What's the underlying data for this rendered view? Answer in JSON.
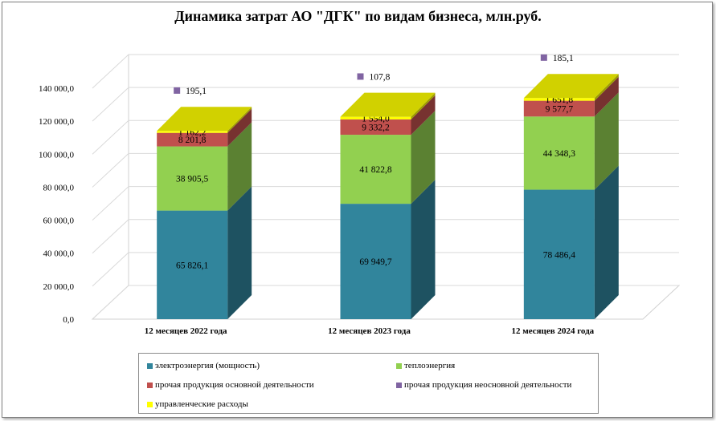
{
  "chart_data": {
    "type": "bar",
    "stacked": true,
    "three_d": true,
    "title": "Динамика затрат АО \"ДГК\" по видам  бизнеса, млн.руб.",
    "categories": [
      "12 месяцев 2022 года",
      "12 месяцев 2023 года",
      "12 месяцев 2024 года"
    ],
    "series": [
      {
        "name": "электроэнергия (мощность)",
        "color": "#31859c",
        "values": [
          65826.1,
          69949.7,
          78486.4
        ],
        "labels": [
          "65 826,1",
          "69 949,7",
          "78 486,4"
        ]
      },
      {
        "name": "теплоэнергия",
        "color": "#92d050",
        "values": [
          38905.5,
          41822.8,
          44348.3
        ],
        "labels": [
          "38 905,5",
          "41 822,8",
          "44 348,3"
        ]
      },
      {
        "name": "прочая продукция основной деятельности",
        "color": "#c0504d",
        "values": [
          8201.8,
          9332.2,
          9577.7
        ],
        "labels": [
          "8 201,8",
          "9 332,2",
          "9 577,7"
        ]
      },
      {
        "name": "управленческие расходы",
        "color": "#ffff00",
        "values": [
          1162.2,
          1554.0,
          1651.8
        ],
        "labels": [
          "1 162,2",
          "1 554,0",
          "1 651,8"
        ]
      },
      {
        "name": "прочая продукция неосновной  деятельности",
        "color": "#8064a2",
        "values": [
          195.1,
          107.8,
          185.1
        ],
        "labels": [
          "195,1",
          "107,8",
          "185,1"
        ]
      }
    ],
    "y_ticks": [
      "0,0",
      "20 000,0",
      "40 000,0",
      "60 000,0",
      "80 000,0",
      "100 000,0",
      "120 000,0",
      "140 000,0"
    ],
    "ylim": [
      0,
      140000
    ],
    "grid": true,
    "legend_position": "bottom",
    "legend_order": [
      "электроэнергия (мощность)",
      "теплоэнергия",
      "прочая продукция основной деятельности",
      "прочая продукция неосновной  деятельности",
      "управленческие расходы"
    ]
  }
}
